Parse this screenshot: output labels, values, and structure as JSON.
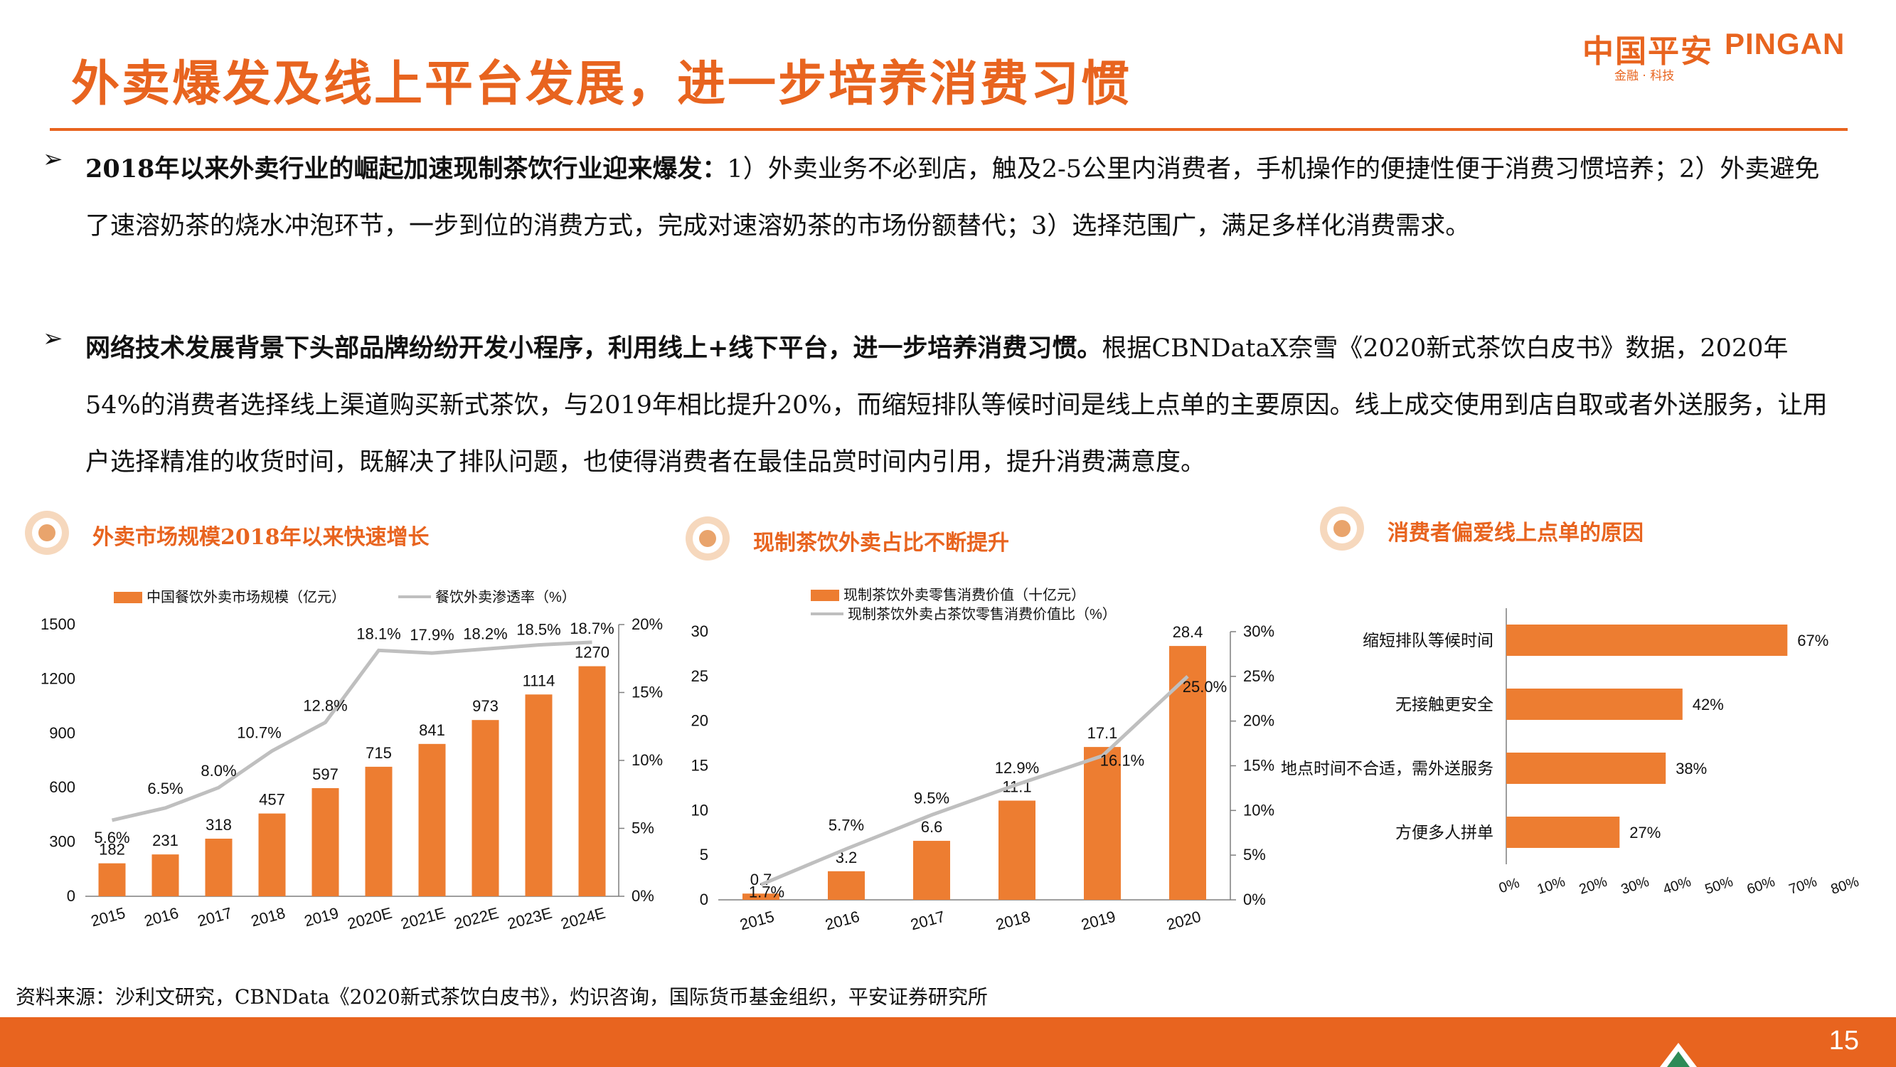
{
  "header": {
    "title": "外卖爆发及线上平台发展，进一步培养消费习惯",
    "logo_cn": "中国平安",
    "logo_en": "PINGAN",
    "logo_sub": "金融 · 科技"
  },
  "bullets": [
    {
      "lead": "2018年以来外卖行业的崛起加速现制茶饮行业迎来爆发：",
      "body": "1）外卖业务不必到店，触及2-5公里内消费者，手机操作的便捷性便于消费习惯培养；2）外卖避免了速溶奶茶的烧水冲泡环节，一步到位的消费方式，完成对速溶奶茶的市场份额替代；3）选择范围广，满足多样化消费需求。"
    },
    {
      "lead": "网络技术发展背景下头部品牌纷纷开发小程序，利用线上+线下平台，进一步培养消费习惯。",
      "body": "根据CBNDataX奈雪《2020新式茶饮白皮书》数据，2020年54%的消费者选择线上渠道购买新式茶饮，与2019年相比提升20%，而缩短排队等候时间是线上点单的主要原因。线上成交使用到店自取或者外送服务，让用户选择精准的收货时间，既解决了排队问题，也使得消费者在最佳品赏时间内引用，提升消费满意度。"
    }
  ],
  "sections": {
    "s1": "外卖市场规模2018年以来快速增长",
    "s2": "现制茶饮外卖占比不断提升",
    "s3": "消费者偏爱线上点单的原因"
  },
  "chart_data": [
    {
      "type": "bar",
      "categories": [
        "2015",
        "2016",
        "2017",
        "2018",
        "2019",
        "2020E",
        "2021E",
        "2022E",
        "2023E",
        "2024E"
      ],
      "series": [
        {
          "name": "中国餐饮外卖市场规模（亿元）",
          "type": "bar",
          "axis": "left",
          "values": [
            182,
            231,
            318,
            457,
            597,
            715,
            841,
            973,
            1114,
            1270
          ],
          "labels": [
            "182",
            "231",
            "318",
            "457",
            "597",
            "715",
            "841",
            "973",
            "1114",
            "1270"
          ]
        },
        {
          "name": "餐饮外卖渗透率（%）",
          "type": "line",
          "axis": "right",
          "values": [
            5.6,
            6.5,
            8.0,
            10.7,
            12.8,
            18.1,
            17.9,
            18.2,
            18.5,
            18.7
          ],
          "labels": [
            "5.6%",
            "6.5%",
            "8.0%",
            "10.7%",
            "12.8%",
            "18.1%",
            "17.9%",
            "18.2%",
            "18.5%",
            "18.7%"
          ]
        }
      ],
      "y_left": {
        "range": [
          0,
          1500
        ],
        "ticks": [
          "0",
          "300",
          "600",
          "900",
          "1200",
          "1500"
        ]
      },
      "y_right": {
        "range": [
          0,
          20
        ],
        "ticks": [
          "0%",
          "5%",
          "10%",
          "15%",
          "20%"
        ]
      },
      "colors": {
        "bar": "#ed7d31",
        "line": "#bfbfbf"
      },
      "legend": "top"
    },
    {
      "type": "bar",
      "categories": [
        "2015",
        "2016",
        "2017",
        "2018",
        "2019",
        "2020"
      ],
      "series": [
        {
          "name": "现制茶饮外卖零售消费价值（十亿元）",
          "type": "bar",
          "axis": "left",
          "values": [
            0.7,
            3.2,
            6.6,
            11.1,
            17.1,
            28.4
          ],
          "labels": [
            "0.7",
            "3.2",
            "6.6",
            "11.1",
            "17.1",
            "28.4"
          ]
        },
        {
          "name": "现制茶饮外卖占茶饮零售消费价值比（%）",
          "type": "line",
          "axis": "right",
          "values": [
            1.7,
            5.7,
            9.5,
            12.9,
            16.1,
            25.0
          ],
          "labels": [
            "1.7%",
            "5.7%",
            "9.5%",
            "12.9%",
            "16.1%",
            "25.0%"
          ]
        }
      ],
      "y_left": {
        "range": [
          0,
          30
        ],
        "ticks": [
          "0",
          "5",
          "10",
          "15",
          "20",
          "25",
          "30"
        ]
      },
      "y_right": {
        "range": [
          0,
          30
        ],
        "ticks": [
          "0%",
          "5%",
          "10%",
          "15%",
          "20%",
          "25%",
          "30%"
        ]
      },
      "colors": {
        "bar": "#ed7d31",
        "line": "#bfbfbf"
      },
      "legend": "top"
    },
    {
      "type": "bar",
      "orientation": "horizontal",
      "categories": [
        "缩短排队等候时间",
        "无接触更安全",
        "地点时间不合适，需外送服务",
        "方便多人拼单"
      ],
      "values": [
        67,
        42,
        38,
        27
      ],
      "labels": [
        "67%",
        "42%",
        "38%",
        "27%"
      ],
      "x_range": [
        0,
        80
      ],
      "x_ticks": [
        "0%",
        "10%",
        "20%",
        "30%",
        "40%",
        "50%",
        "60%",
        "70%",
        "80%"
      ],
      "colors": {
        "bar": "#ed7d31"
      }
    }
  ],
  "footer": {
    "source": "资料来源：沙利文研究，CBNData《2020新式茶饮白皮书》，灼识咨询，国际货币基金组织，平安证券研究所",
    "page": "15"
  }
}
